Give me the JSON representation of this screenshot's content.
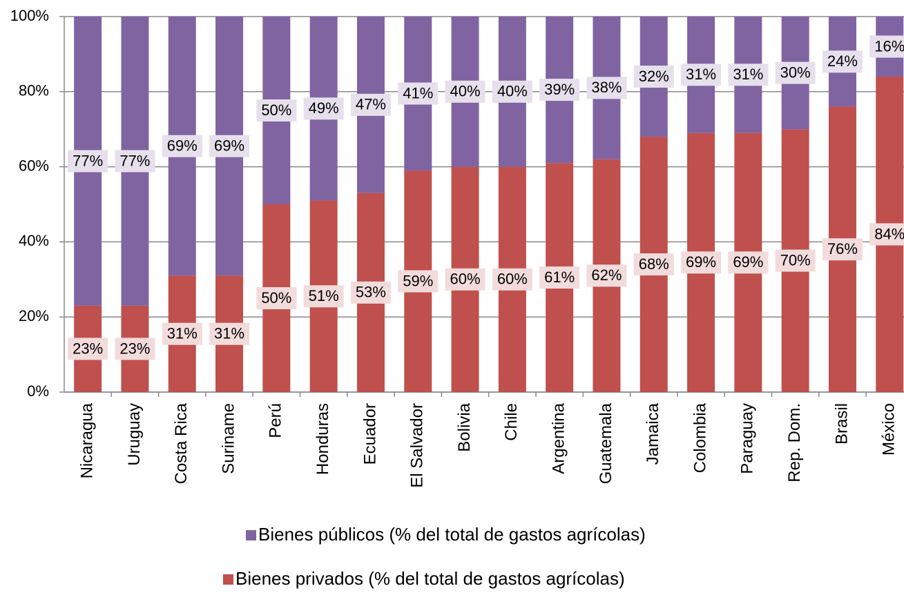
{
  "chart_data": {
    "type": "stacked_bar",
    "categories": [
      "Nicaragua",
      "Uruguay",
      "Costa Rica",
      "Suriname",
      "Perú",
      "Honduras",
      "Ecuador",
      "El Salvador",
      "Bolivia",
      "Chile",
      "Argentina",
      "Guatemala",
      "Jamaica",
      "Colombia",
      "Paraguay",
      "Rep. Dom.",
      "Brasil",
      "México"
    ],
    "series": [
      {
        "name": "Bienes públicos (% del total de gastos agrícolas)",
        "color": "#8064a2",
        "values": [
          77,
          77,
          69,
          69,
          50,
          49,
          47,
          41,
          40,
          40,
          39,
          38,
          32,
          31,
          31,
          30,
          24,
          16
        ],
        "value_labels": [
          "77%",
          "77%",
          "69%",
          "69%",
          "50%",
          "49%",
          "47%",
          "41%",
          "40%",
          "40%",
          "39%",
          "38%",
          "32%",
          "31%",
          "31%",
          "30%",
          "24%",
          "16%"
        ]
      },
      {
        "name": "Bienes privados (% del total de gastos agrícolas)",
        "color": "#c0504d",
        "values": [
          23,
          23,
          31,
          31,
          50,
          51,
          53,
          59,
          60,
          60,
          61,
          62,
          68,
          69,
          69,
          70,
          76,
          84
        ],
        "value_labels": [
          "23%",
          "23%",
          "31%",
          "31%",
          "50%",
          "51%",
          "53%",
          "59%",
          "60%",
          "60%",
          "61%",
          "62%",
          "68%",
          "69%",
          "69%",
          "70%",
          "76%",
          "84%"
        ]
      }
    ],
    "ylim": [
      0,
      100
    ],
    "yticks": [
      {
        "value": 0,
        "label": "0%"
      },
      {
        "value": 20,
        "label": "20%"
      },
      {
        "value": 40,
        "label": "40%"
      },
      {
        "value": 60,
        "label": "60%"
      },
      {
        "value": 80,
        "label": "80%"
      },
      {
        "value": 100,
        "label": "100%"
      }
    ],
    "grid": true
  }
}
